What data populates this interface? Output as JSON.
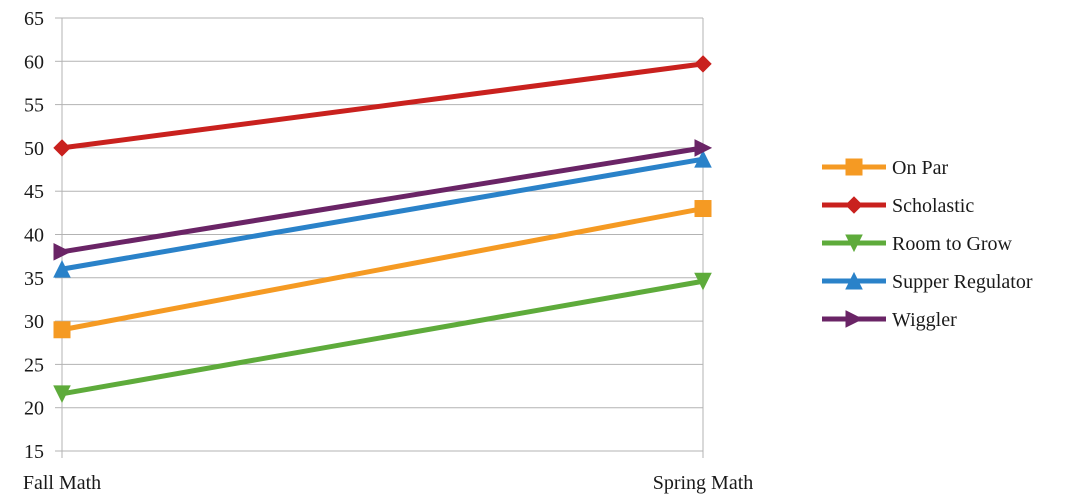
{
  "chart_data": {
    "type": "line",
    "categories": [
      "Fall Math",
      "Spring Math"
    ],
    "ylim": [
      15,
      65
    ],
    "yticks": [
      15,
      20,
      25,
      30,
      35,
      40,
      45,
      50,
      55,
      60,
      65
    ],
    "grid": "horizontal",
    "legend_position": "right",
    "series": [
      {
        "name": "On Par",
        "values": [
          29,
          43
        ],
        "color": "#f59a23",
        "marker": "square"
      },
      {
        "name": "Scholastic",
        "values": [
          50,
          59.7
        ],
        "color": "#c9211e",
        "marker": "diamond"
      },
      {
        "name": "Room to Grow",
        "values": [
          21.6,
          34.6
        ],
        "color": "#5eab3b",
        "marker": "triangle-down"
      },
      {
        "name": "Supper Regulator",
        "values": [
          36,
          48.7
        ],
        "color": "#2a82c9",
        "marker": "triangle-up"
      },
      {
        "name": "Wiggler",
        "values": [
          38,
          50
        ],
        "color": "#6a2466",
        "marker": "triangle-right"
      }
    ]
  }
}
